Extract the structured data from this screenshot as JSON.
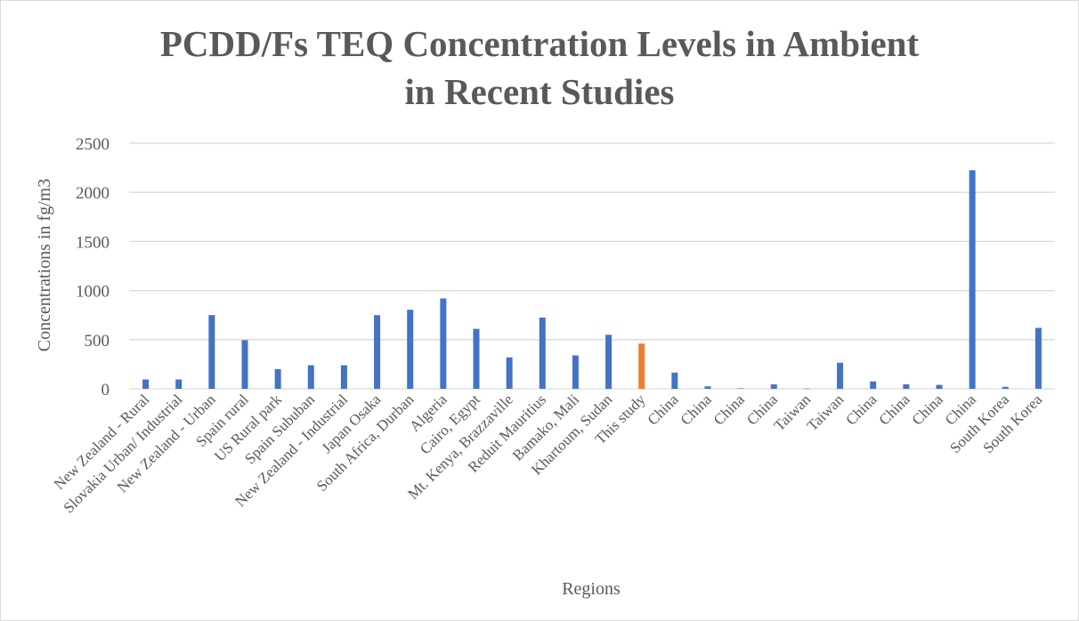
{
  "chart_data": {
    "type": "bar",
    "title_lines": [
      "PCDD/Fs TEQ Concentration Levels in Ambient",
      "in Recent Studies"
    ],
    "xlabel": "Regions",
    "ylabel": "Concentrations in fg/m3",
    "ylim": [
      0,
      2500
    ],
    "yticks": [
      0,
      500,
      1000,
      1500,
      2000,
      2500
    ],
    "grid": true,
    "legend": "none",
    "colors": {
      "default": "#4472c4",
      "highlight": "#ed7d31",
      "grid": "#d9d9d9",
      "text": "#595959"
    },
    "categories": [
      "New Zealand - Rural",
      "Slovakia Urban/ Industrial",
      "New Zealand - Urban",
      "Spain rural",
      "US Rural park",
      "Spain Sububan",
      "New Zealand - Industrial",
      "Japan Osaka",
      "South Africa, Durban",
      "Algeria",
      "Cairo, Egypt",
      "Mt. Kenya, Brazzaville",
      "Reduit Mauritius",
      "Bamako, Mali",
      "Khartoum, Sudan",
      "This study",
      "China",
      "China",
      "China",
      "China",
      "Taiwan",
      "Taiwan",
      "China",
      "China",
      "China",
      "China",
      "South Korea",
      "South Korea"
    ],
    "values": [
      95,
      95,
      750,
      495,
      200,
      240,
      240,
      750,
      805,
      920,
      610,
      320,
      725,
      340,
      550,
      460,
      165,
      25,
      5,
      45,
      3,
      265,
      75,
      45,
      40,
      2225,
      20,
      620
    ],
    "highlight_index": 15
  }
}
